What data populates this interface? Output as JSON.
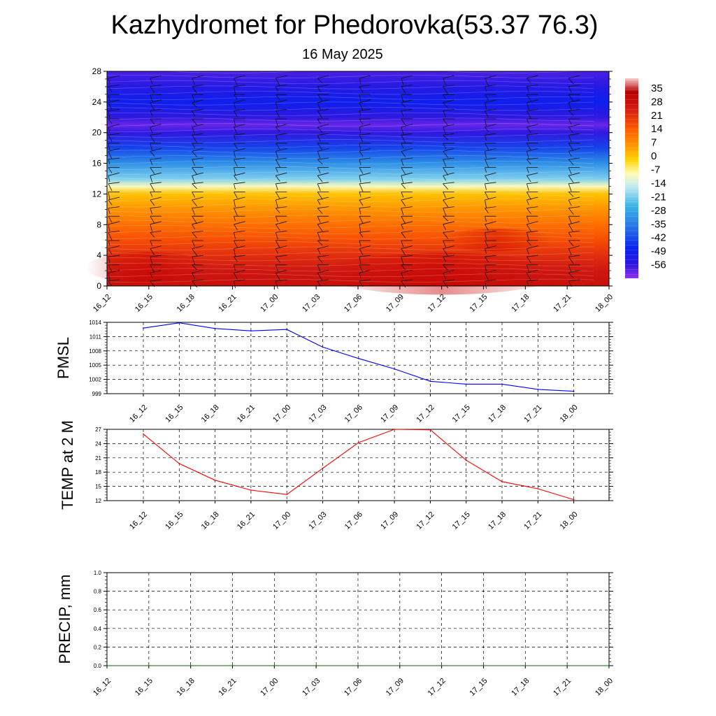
{
  "title": "Kazhydromet for Phedorovka(53.37 76.3)",
  "subtitle": "16 May 2025",
  "time_labels": [
    "16_12",
    "16_15",
    "16_18",
    "16_21",
    "17_00",
    "17_03",
    "17_06",
    "17_09",
    "17_12",
    "17_15",
    "17_18",
    "17_21",
    "18_00"
  ],
  "chart_data": [
    {
      "type": "heatmap",
      "name": "vertical-cross-section",
      "x": [
        "16_12",
        "16_15",
        "16_18",
        "16_21",
        "17_00",
        "17_03",
        "17_06",
        "17_09",
        "17_12",
        "17_15",
        "17_18",
        "17_21",
        "18_00"
      ],
      "ylim": [
        0,
        28
      ],
      "yticks": [
        0,
        4,
        8,
        12,
        16,
        20,
        24,
        28
      ],
      "temperature_profile": [
        {
          "height": 0,
          "value": 28
        },
        {
          "height": 2,
          "value": 26
        },
        {
          "height": 4,
          "value": 21
        },
        {
          "height": 6,
          "value": 16
        },
        {
          "height": 8,
          "value": 11
        },
        {
          "height": 10,
          "value": 6
        },
        {
          "height": 12,
          "value": 0
        },
        {
          "height": 13,
          "value": -10
        },
        {
          "height": 14,
          "value": -21
        },
        {
          "height": 16,
          "value": -32
        },
        {
          "height": 18,
          "value": -43
        },
        {
          "height": 20,
          "value": -56
        },
        {
          "height": 21,
          "value": -60
        },
        {
          "height": 22,
          "value": -56
        },
        {
          "height": 24,
          "value": -49
        },
        {
          "height": 26,
          "value": -54
        },
        {
          "height": 28,
          "value": -58
        }
      ],
      "colorbar": {
        "labels": [
          "35",
          "28",
          "21",
          "14",
          "7",
          "0",
          "-7",
          "-14",
          "-21",
          "-28",
          "-35",
          "-42",
          "-49",
          "-56"
        ],
        "range": [
          -63,
          40
        ],
        "stops": [
          {
            "v": 40,
            "c": "#f7c9c9"
          },
          {
            "v": 33,
            "c": "#b80000"
          },
          {
            "v": 24,
            "c": "#d51d14"
          },
          {
            "v": 14,
            "c": "#ff5a00"
          },
          {
            "v": 5,
            "c": "#ff9a00"
          },
          {
            "v": -2,
            "c": "#ffd200"
          },
          {
            "v": -9,
            "c": "#fffbb5"
          },
          {
            "v": -16,
            "c": "#bfe9f5"
          },
          {
            "v": -26,
            "c": "#38b3e6"
          },
          {
            "v": -36,
            "c": "#2878e6"
          },
          {
            "v": -48,
            "c": "#0820f0"
          },
          {
            "v": -56,
            "c": "#3018e0"
          },
          {
            "v": -63,
            "c": "#9030f0"
          }
        ]
      }
    },
    {
      "type": "line",
      "name": "PMSL",
      "ylabel": "PMSL",
      "x": [
        "16_12",
        "16_15",
        "16_18",
        "16_21",
        "17_00",
        "17_03",
        "17_06",
        "17_09",
        "17_12",
        "17_15",
        "17_18",
        "17_21",
        "18_00"
      ],
      "values": [
        1012.8,
        1013.9,
        1012.7,
        1012.2,
        1012.5,
        1008.8,
        1006.4,
        1004.2,
        1001.6,
        1001.0,
        1001.0,
        999.9,
        999.5
      ],
      "ylim": [
        999,
        1014
      ],
      "yticks": [
        999,
        1002,
        1005,
        1008,
        1011,
        1014
      ],
      "color": "#0000ff",
      "grid": true
    },
    {
      "type": "line",
      "name": "TEMP at 2 M",
      "ylabel": "TEMP at 2 M",
      "x": [
        "16_12",
        "16_15",
        "16_18",
        "16_21",
        "17_00",
        "17_03",
        "17_06",
        "17_09",
        "17_12",
        "17_15",
        "17_18",
        "17_21",
        "18_00"
      ],
      "values": [
        26.0,
        19.8,
        16.3,
        14.2,
        13.3,
        18.8,
        24.2,
        27.0,
        26.9,
        20.5,
        16.0,
        14.5,
        12.2
      ],
      "ylim": [
        12,
        27
      ],
      "yticks": [
        12,
        15,
        18,
        21,
        24,
        27
      ],
      "color": "#ff0000",
      "grid": true
    },
    {
      "type": "line",
      "name": "PRECIP, mm",
      "ylabel": "PRECIP, mm",
      "x": [
        "16_12",
        "16_15",
        "16_18",
        "16_21",
        "17_00",
        "17_03",
        "17_06",
        "17_09",
        "17_12",
        "17_15",
        "17_18",
        "17_21",
        "18_00"
      ],
      "values": [
        0,
        0,
        0,
        0,
        0,
        0,
        0,
        0,
        0,
        0,
        0,
        0,
        0
      ],
      "ylim": [
        0,
        1
      ],
      "yticks": [
        "0.0",
        "0.2",
        "0.4",
        "0.6",
        "0.8",
        "1.0"
      ],
      "color": "#006400",
      "grid": true
    }
  ]
}
